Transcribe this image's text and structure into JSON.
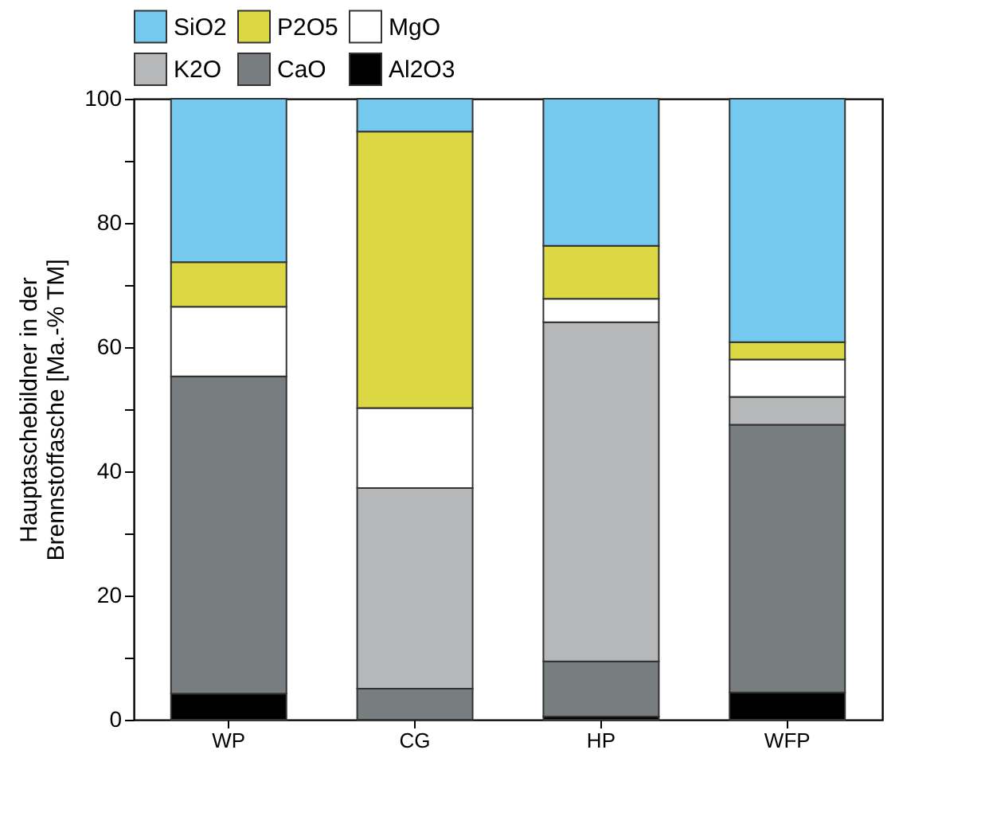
{
  "chart_data": {
    "type": "bar",
    "stacked": true,
    "ylabel": "Hauptaschebildner in der\nBrennstoffasche [Ma.-% TM]",
    "categories": [
      "WP",
      "CG",
      "HP",
      "WFP"
    ],
    "series": [
      {
        "name": "Al2O3",
        "color": "#000000",
        "values": [
          4.2,
          0,
          0.5,
          4.4
        ]
      },
      {
        "name": "CaO",
        "color": "#787d7f",
        "values": [
          51.1,
          5,
          8.9,
          43.1
        ]
      },
      {
        "name": "K2O",
        "color": "#b5b7b9",
        "values": [
          0,
          32.3,
          54.6,
          4.5
        ]
      },
      {
        "name": "MgO",
        "color": "#ffffff",
        "values": [
          11.2,
          12.9,
          3.8,
          6
        ]
      },
      {
        "name": "P2O5",
        "color": "#dcd843",
        "values": [
          7.2,
          44.5,
          8.5,
          2.8
        ]
      },
      {
        "name": "SiO2",
        "color": "#75c9ef",
        "values": [
          26.3,
          5.3,
          23.7,
          39.2
        ]
      }
    ],
    "ylim": [
      0,
      100
    ],
    "yticks": [
      0,
      {
        "value": 10,
        "label": null
      },
      20,
      {
        "value": 30,
        "label": null
      },
      40,
      {
        "value": 50,
        "label": null
      },
      60,
      {
        "value": 70,
        "label": null
      },
      80,
      {
        "value": 90,
        "label": null
      },
      100
    ],
    "grid": false,
    "legend": "top"
  }
}
